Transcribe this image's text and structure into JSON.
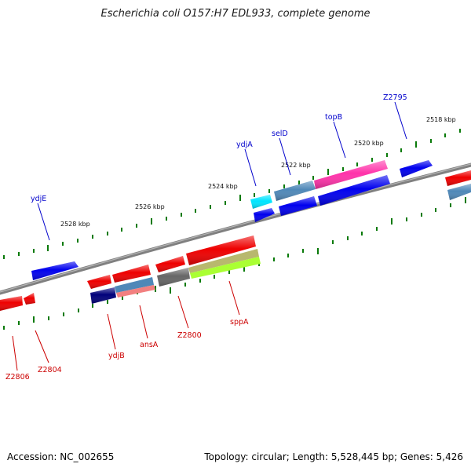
{
  "title": "Escherichia coli O157:H7 EDL933, complete genome",
  "footer": {
    "accession": "Accession: NC_002655",
    "summary": "Topology: circular; Length: 5,528,445 bp; Genes: 5,426"
  },
  "colors": {
    "backbone": "#808080",
    "tick": "#0a7a0a",
    "forward_label": "#0000cc",
    "reverse_label": "#cc0000"
  },
  "scale_labels": [
    "2518 kbp",
    "2520 kbp",
    "2522 kbp",
    "2524 kbp",
    "2526 kbp",
    "2528 kbp"
  ],
  "gene_labels": {
    "forward": [
      "Z2795",
      "topB",
      "selD",
      "ydjA",
      "ydjE"
    ],
    "reverse": [
      "Z2806",
      "Z2804",
      "ydjB",
      "ansA",
      "Z2800",
      "sppA"
    ]
  }
}
